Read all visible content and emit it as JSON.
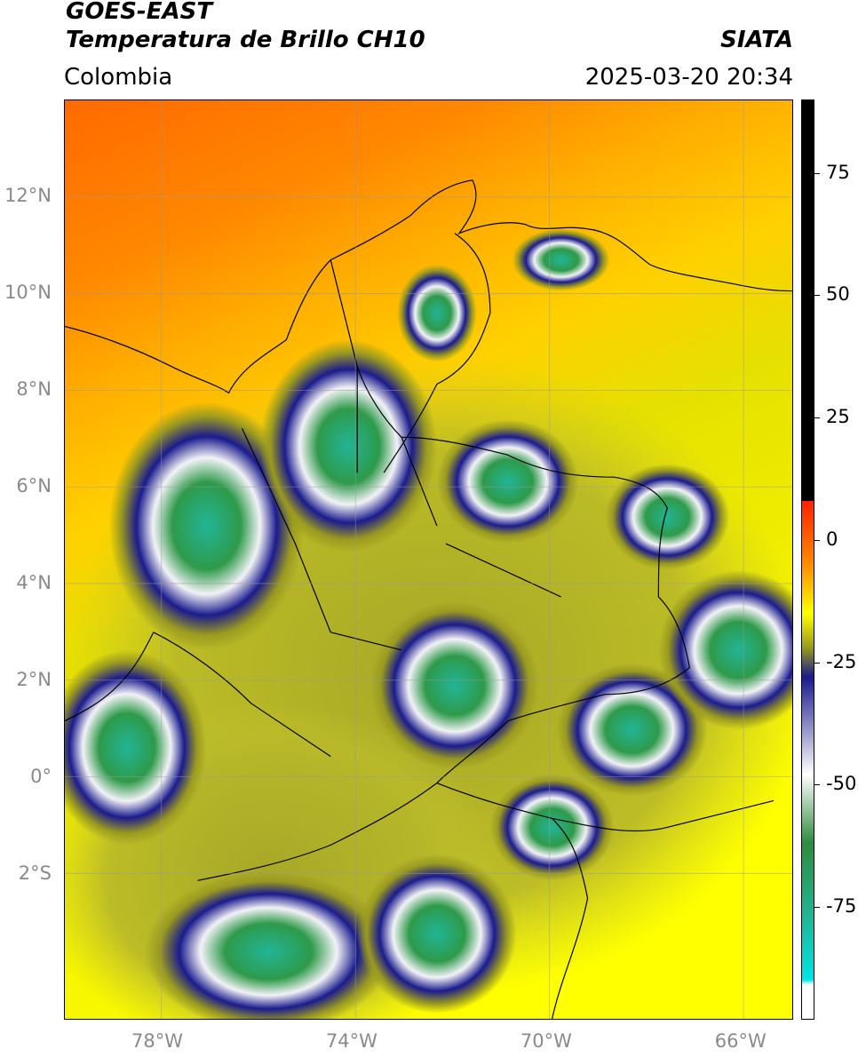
{
  "header": {
    "title_line1": "GOES-EAST",
    "title_line2": "Temperatura de Brillo CH10",
    "region": "Colombia",
    "source": "SIATA",
    "datetime": "2025-03-20 20:34"
  },
  "map": {
    "lat_ticks": [
      {
        "label": "12°N",
        "value": 12
      },
      {
        "label": "10°N",
        "value": 10
      },
      {
        "label": "8°N",
        "value": 8
      },
      {
        "label": "6°N",
        "value": 6
      },
      {
        "label": "4°N",
        "value": 4
      },
      {
        "label": "2°N",
        "value": 2
      },
      {
        "label": "0°",
        "value": 0
      },
      {
        "label": "2°S",
        "value": -2
      }
    ],
    "lon_ticks": [
      {
        "label": "78°W",
        "value": -78
      },
      {
        "label": "74°W",
        "value": -74
      },
      {
        "label": "70°W",
        "value": -70
      },
      {
        "label": "66°W",
        "value": -66
      }
    ],
    "lat_range": [
      -5.0,
      14.0
    ],
    "lon_range": [
      -79.9,
      -64.9
    ],
    "grid": true
  },
  "colorbar": {
    "range": [
      -98,
      90
    ],
    "ticks": [
      "75",
      "50",
      "25",
      "0",
      "-25",
      "-50",
      "-75"
    ],
    "tick_values": [
      75,
      50,
      25,
      0,
      -25,
      -50,
      -75
    ],
    "colors": {
      "black": "#000000",
      "red": "#ff2200",
      "orange": "#ff8c00",
      "yellow": "#ffff00",
      "olive": "#9a9a1e",
      "navy": "#1a1a8c",
      "white": "#ffffff",
      "green": "#2e8b3e",
      "teal": "#20b89a",
      "cyan": "#00e5e5"
    }
  }
}
